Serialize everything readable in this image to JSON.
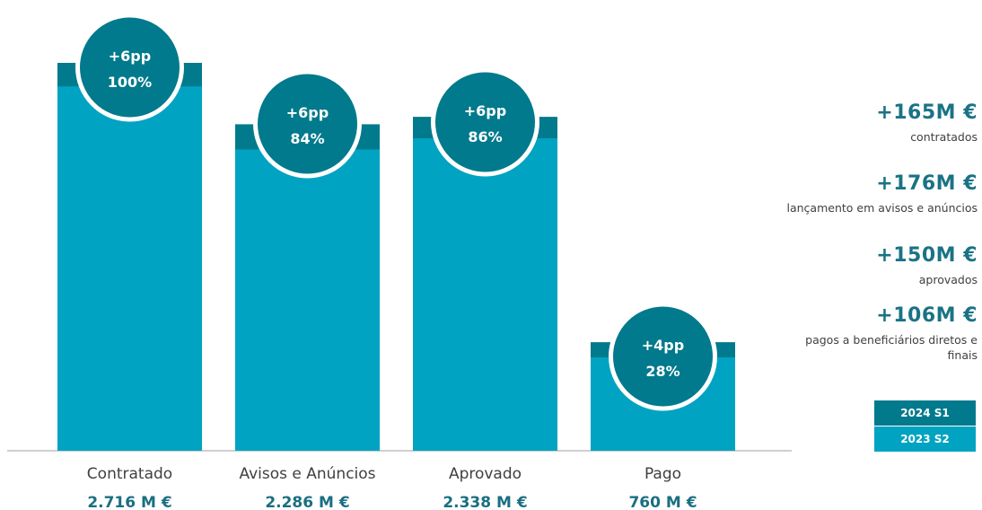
{
  "colors": {
    "s1_2024": "#007a8c",
    "s2_2023": "#00a3c1",
    "badge": "#007a8c",
    "axis": "#bfbfbf"
  },
  "chart_data": {
    "type": "bar",
    "categories": [
      "Contratado",
      "Avisos e Anúncios",
      "Aprovado",
      "Pago"
    ],
    "category_values": [
      "2.716 M €",
      "2.286 M €",
      "2.338 M €",
      "760 M €"
    ],
    "series": [
      {
        "name": "2024 S1",
        "values": [
          2716,
          2286,
          2338,
          760
        ]
      },
      {
        "name": "2023 S2",
        "values": [
          2551,
          2110,
          2188,
          654
        ]
      }
    ],
    "badges": [
      {
        "change": "+6pp",
        "percent": "100%"
      },
      {
        "change": "+6pp",
        "percent": "84%"
      },
      {
        "change": "+6pp",
        "percent": "86%"
      },
      {
        "change": "+4pp",
        "percent": "28%"
      }
    ],
    "ylim": [
      0,
      2716
    ],
    "grid": false,
    "legend_position": "right"
  },
  "kpis": [
    {
      "value": "+165M €",
      "label": "contratados"
    },
    {
      "value": "+176M €",
      "label": "lançamento em avisos e anúncios"
    },
    {
      "value": "+150M €",
      "label": "aprovados"
    },
    {
      "value": "+106M €",
      "label": "pagos a beneficiários diretos e finais"
    }
  ],
  "legend": [
    {
      "label": "2024 S1"
    },
    {
      "label": "2023 S2"
    }
  ]
}
